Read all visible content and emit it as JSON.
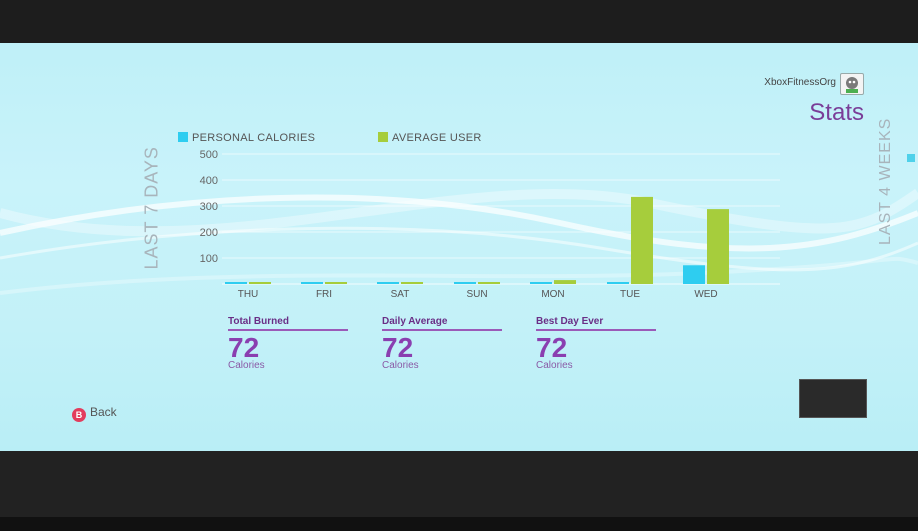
{
  "header": {
    "gamertag": "XboxFitnessOrg",
    "title": "Stats"
  },
  "side_labels": {
    "left": "LAST 7 DAYS",
    "right": "LAST 4 WEEKS"
  },
  "legend": [
    {
      "label": "PERSONAL CALORIES",
      "color": "#2ecdf0"
    },
    {
      "label": "AVERAGE USER",
      "color": "#a6cd3c"
    }
  ],
  "chart_data": {
    "type": "bar",
    "categories": [
      "THU",
      "FRI",
      "SAT",
      "SUN",
      "MON",
      "TUE",
      "WED"
    ],
    "series": [
      {
        "name": "PERSONAL CALORIES",
        "color": "#2ecdf0",
        "values": [
          0,
          0,
          0,
          0,
          0,
          0,
          72
        ]
      },
      {
        "name": "AVERAGE USER",
        "color": "#a6cd3c",
        "values": [
          0,
          0,
          0,
          0,
          15,
          335,
          288
        ]
      }
    ],
    "yticks": [
      100,
      200,
      300,
      400,
      500
    ],
    "ylim": [
      0,
      500
    ],
    "grid": true
  },
  "stats": [
    {
      "label": "Total Burned",
      "value": "72",
      "unit": "Calories"
    },
    {
      "label": "Daily Average",
      "value": "72",
      "unit": "Calories"
    },
    {
      "label": "Best Day Ever",
      "value": "72",
      "unit": "Calories"
    }
  ],
  "footer": {
    "back_icon": "B",
    "back_label": "Back"
  }
}
